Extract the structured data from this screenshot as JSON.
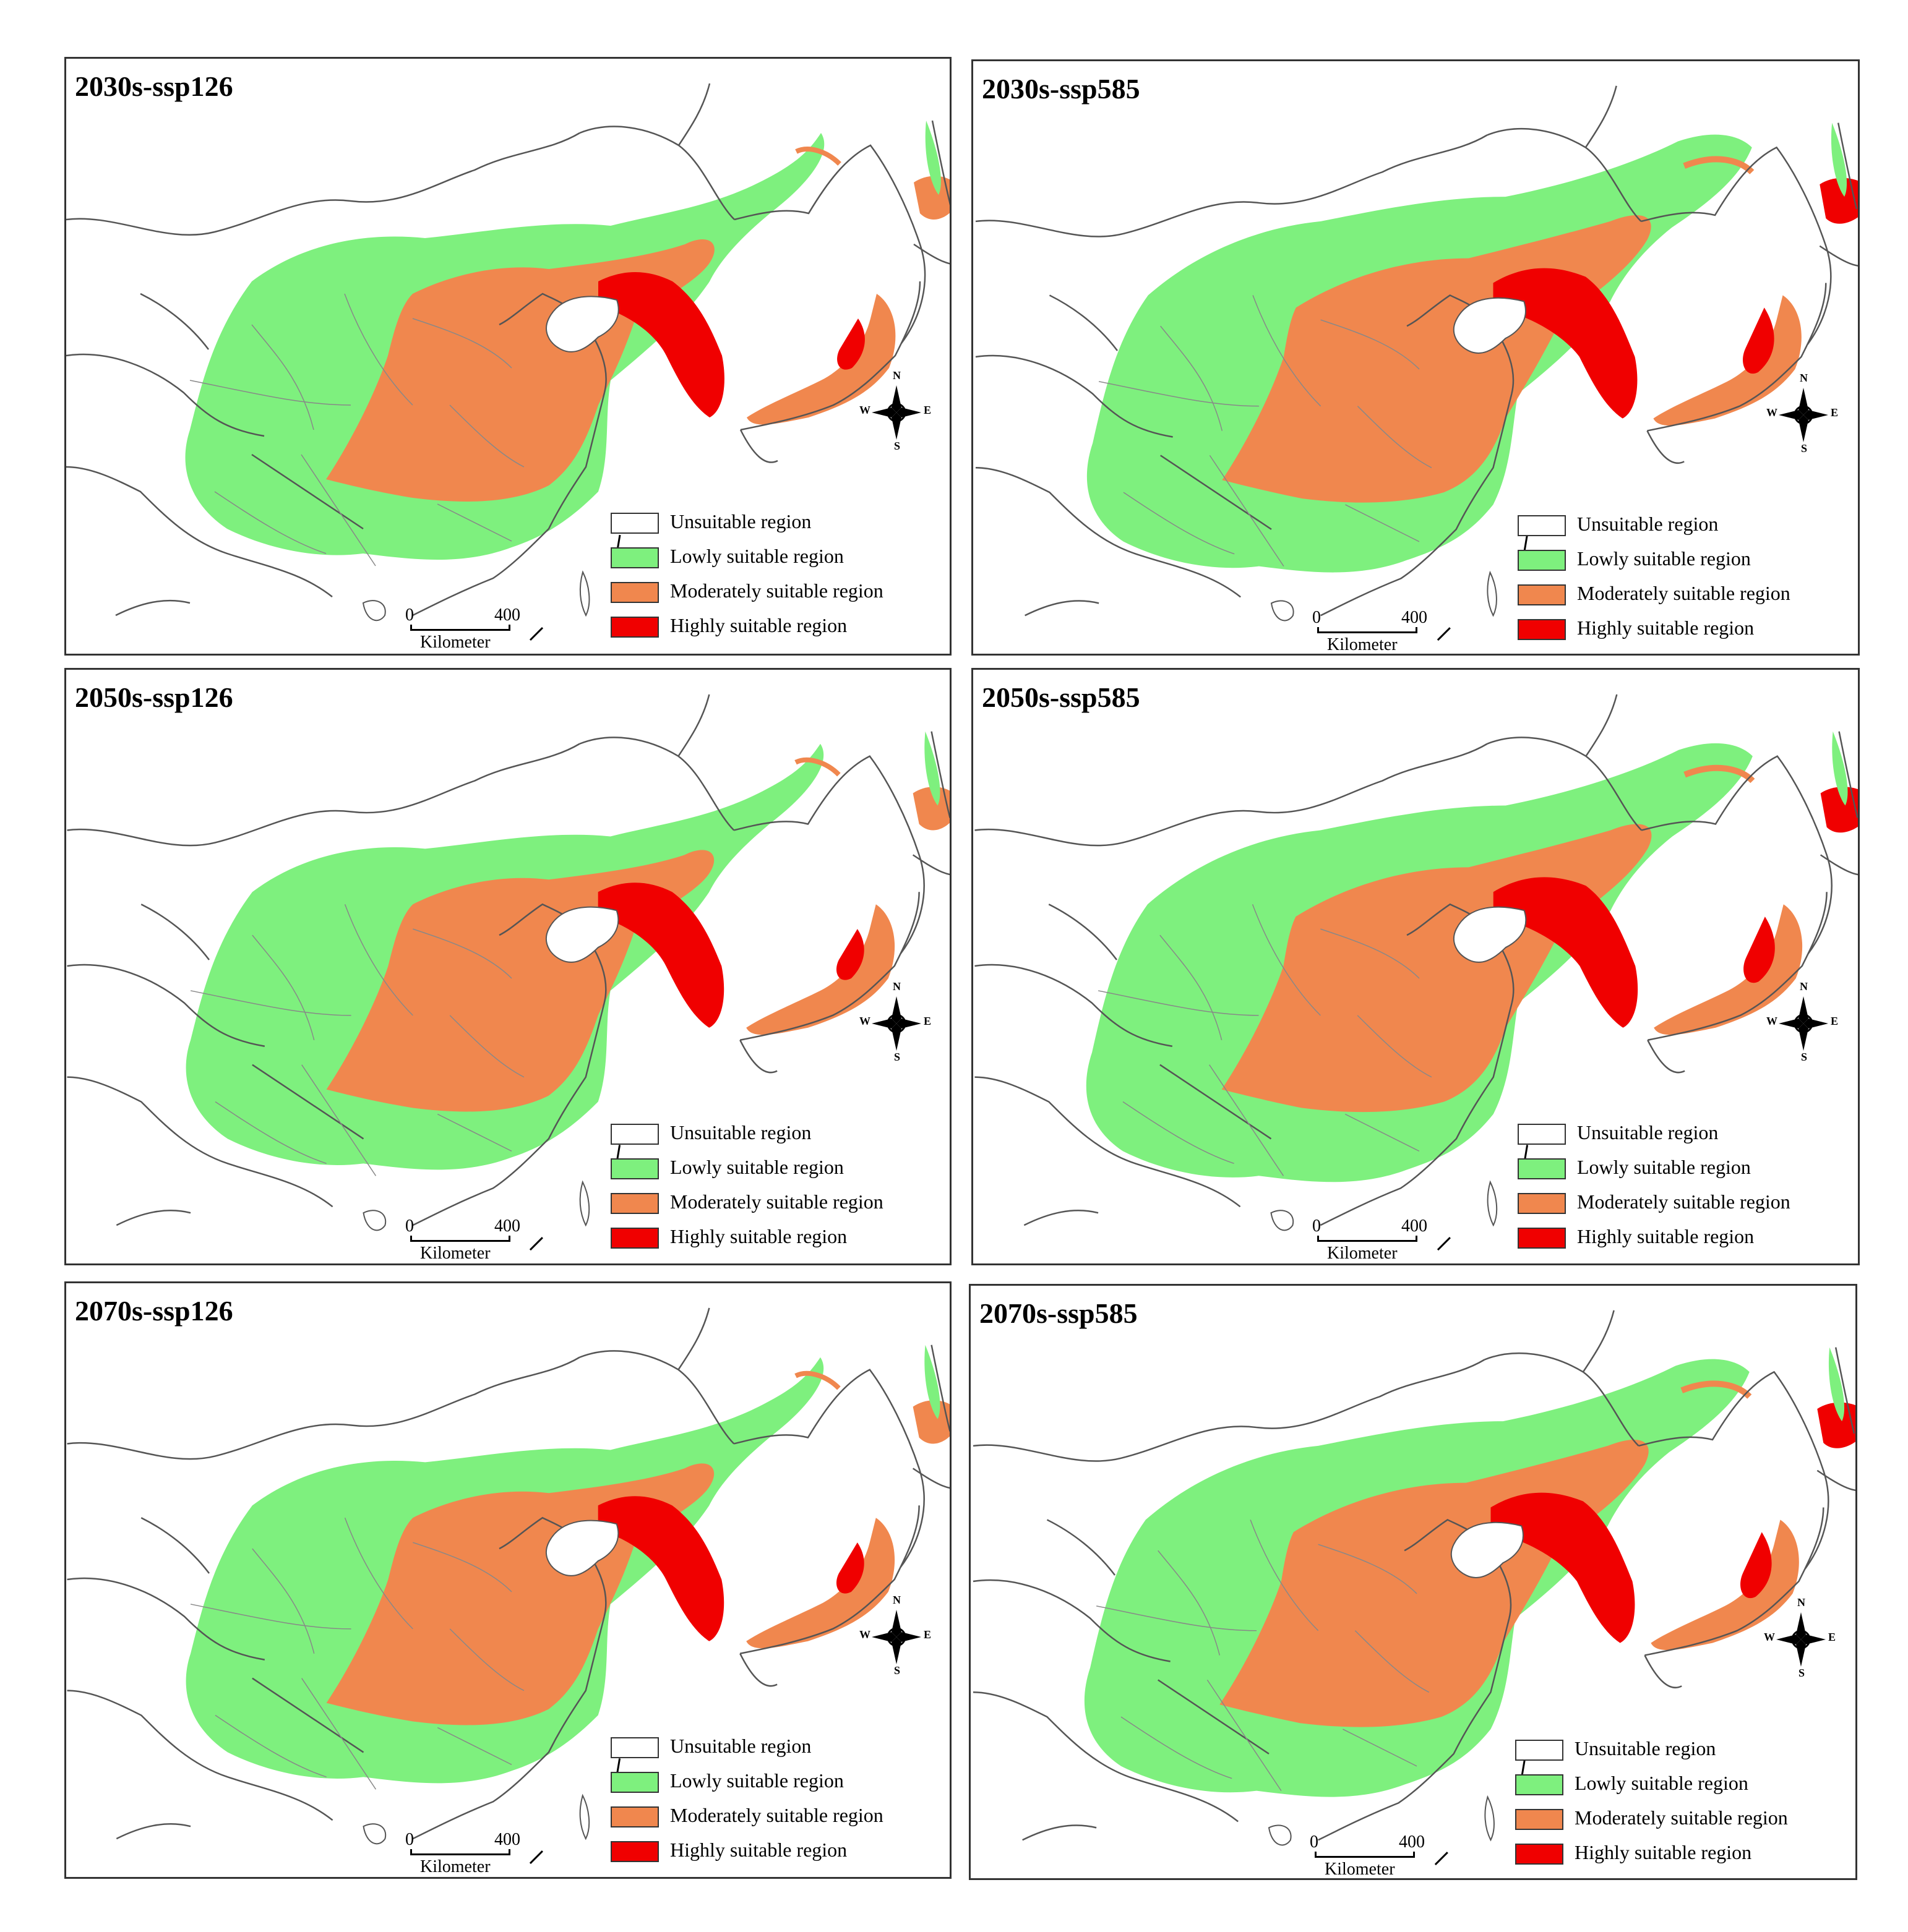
{
  "panels": [
    {
      "title": "2030s-ssp126"
    },
    {
      "title": "2030s-ssp585"
    },
    {
      "title": "2050s-ssp126"
    },
    {
      "title": "2050s-ssp585"
    },
    {
      "title": "2070s-ssp126"
    },
    {
      "title": "2070s-ssp585"
    }
  ],
  "legend": {
    "items": [
      {
        "label": "Unsuitable region",
        "color": "#ffffff"
      },
      {
        "label": "Lowly suitable region",
        "color": "#7ef07e"
      },
      {
        "label": "Moderately suitable region",
        "color": "#f0874e"
      },
      {
        "label": "Highly suitable region",
        "color": "#f00000"
      }
    ]
  },
  "scale_bar": {
    "start": "0",
    "end": "400",
    "unit": "Kilometer"
  },
  "compass": {
    "n": "N",
    "s": "S",
    "w": "W",
    "e": "E"
  }
}
